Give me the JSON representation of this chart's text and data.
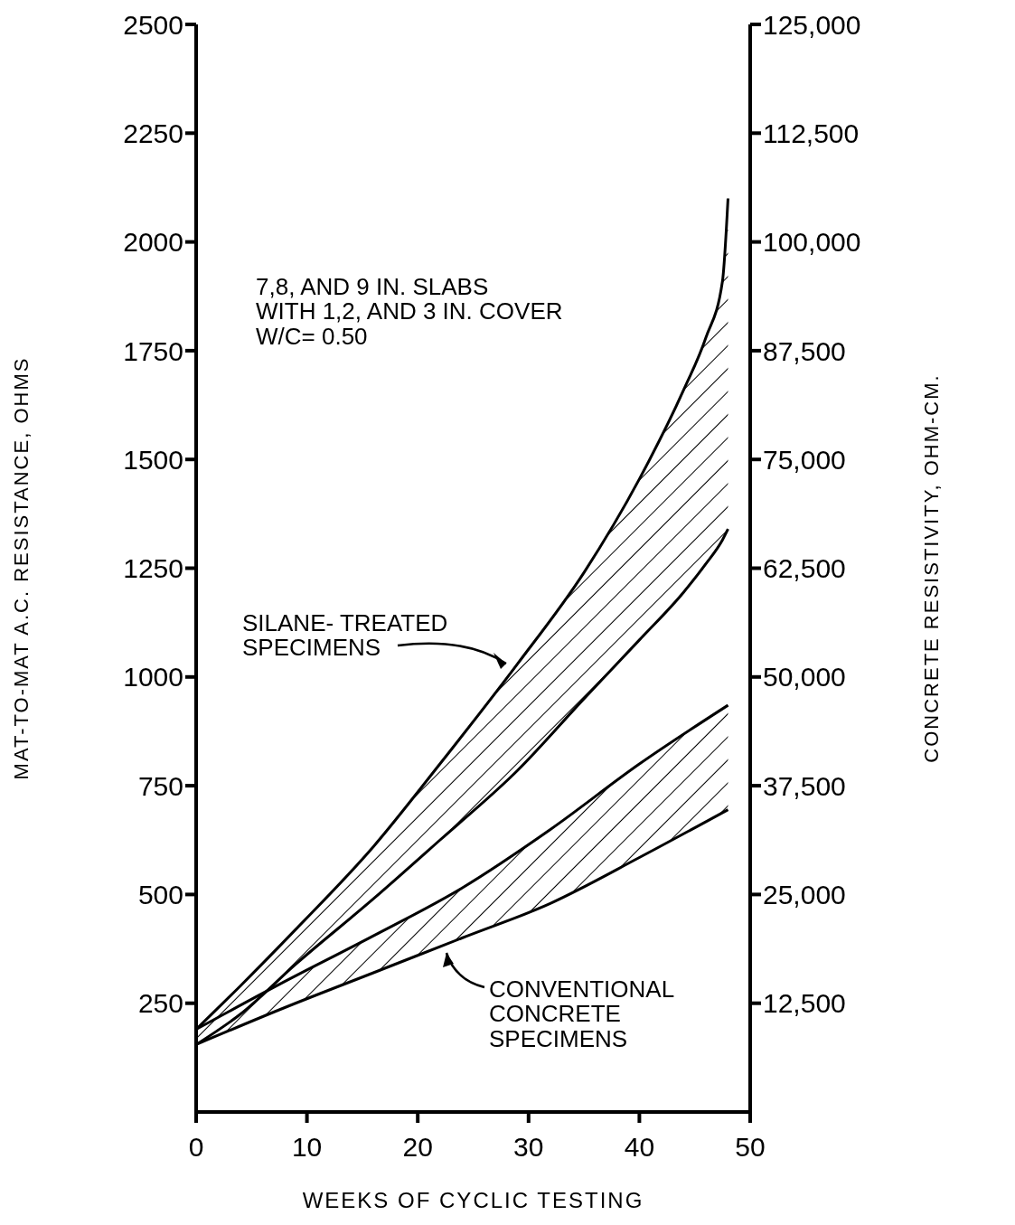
{
  "chart_data": {
    "type": "line",
    "xlabel": "WEEKS OF CYCLIC TESTING",
    "ylabel": "MAT-TO-MAT A.C. RESISTANCE, OHMS",
    "y2label": "CONCRETE RESISTIVITY, OHM-CM.",
    "annotations": [
      "7,8, AND 9 IN. SLABS\nWITH 1,2, AND 3 IN. COVER\nW/C= 0.50"
    ],
    "xlim": [
      0,
      50
    ],
    "xticks": [
      0,
      10,
      20,
      30,
      40,
      50
    ],
    "ylim": [
      0,
      2500
    ],
    "yticks": [
      250,
      500,
      750,
      1000,
      1250,
      1500,
      1750,
      2000,
      2250,
      2500
    ],
    "y2lim": [
      0,
      125000
    ],
    "y2ticks": [
      {
        "value": 12500,
        "label": "12,500"
      },
      {
        "value": 25000,
        "label": "25,000"
      },
      {
        "value": 37500,
        "label": "37,500"
      },
      {
        "value": 50000,
        "label": "50,000"
      },
      {
        "value": 62500,
        "label": "62,500"
      },
      {
        "value": 75000,
        "label": "75,000"
      },
      {
        "value": 87500,
        "label": "87,500"
      },
      {
        "value": 100000,
        "label": "100,000"
      },
      {
        "value": 112500,
        "label": "112,500"
      },
      {
        "value": 125000,
        "label": "125,000"
      }
    ],
    "series": [
      {
        "name": "SILANE- TREATED\nSPECIMENS",
        "color": "#000000",
        "x": [
          0,
          4,
          9,
          16,
          22,
          29,
          35,
          40,
          44,
          46,
          47.5,
          48
        ],
        "values": [
          190,
          290,
          420,
          610,
          800,
          1030,
          1240,
          1455,
          1660,
          1780,
          1910,
          2100
        ],
        "lower": [
          155,
          225,
          340,
          490,
          625,
          785,
          950,
          1085,
          1195,
          1260,
          1315,
          1340
        ],
        "upper": [
          190,
          290,
          420,
          610,
          800,
          1030,
          1240,
          1455,
          1660,
          1780,
          1910,
          2100
        ]
      },
      {
        "color": "#000000",
        "x": [
          0,
          4,
          9,
          16,
          22,
          29,
          35,
          40,
          44,
          46,
          47.5,
          48
        ],
        "values": [
          155,
          225,
          340,
          490,
          625,
          785,
          950,
          1085,
          1195,
          1260,
          1315,
          1340
        ]
      },
      {
        "color": "#000000",
        "x": [
          0,
          8,
          16,
          24,
          32,
          40,
          48
        ],
        "values": [
          190,
          300,
          405,
          515,
          650,
          800,
          935
        ],
        "lower": [
          155,
          240,
          320,
          400,
          480,
          585,
          695
        ],
        "upper": [
          190,
          300,
          405,
          515,
          650,
          800,
          935
        ]
      },
      {
        "name": "CONVENTIONAL\nCONCRETE\nSPECIMENS",
        "color": "#000000",
        "x": [
          0,
          8,
          16,
          24,
          32,
          40,
          48
        ],
        "values": [
          155,
          240,
          320,
          400,
          480,
          585,
          695
        ]
      }
    ]
  }
}
